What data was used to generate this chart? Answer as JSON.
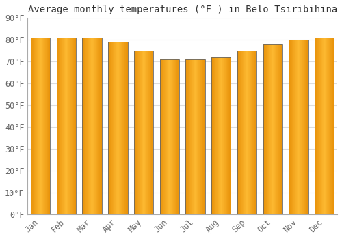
{
  "title": "Average monthly temperatures (°F ) in Belo Tsiribihina",
  "months": [
    "Jan",
    "Feb",
    "Mar",
    "Apr",
    "May",
    "Jun",
    "Jul",
    "Aug",
    "Sep",
    "Oct",
    "Nov",
    "Dec"
  ],
  "values": [
    81,
    81,
    81,
    79,
    75,
    71,
    71,
    72,
    75,
    78,
    80,
    81
  ],
  "bar_color_left": "#E8920A",
  "bar_color_center": "#FDB931",
  "bar_color_right": "#E8920A",
  "bar_outline": "#666666",
  "ylim": [
    0,
    90
  ],
  "ytick_step": 10,
  "background_color": "#FFFFFF",
  "plot_bg_color": "#FFFFFF",
  "grid_color": "#DDDDDD",
  "title_fontsize": 10,
  "tick_fontsize": 8.5,
  "tick_color": "#666666",
  "bar_width": 0.75
}
